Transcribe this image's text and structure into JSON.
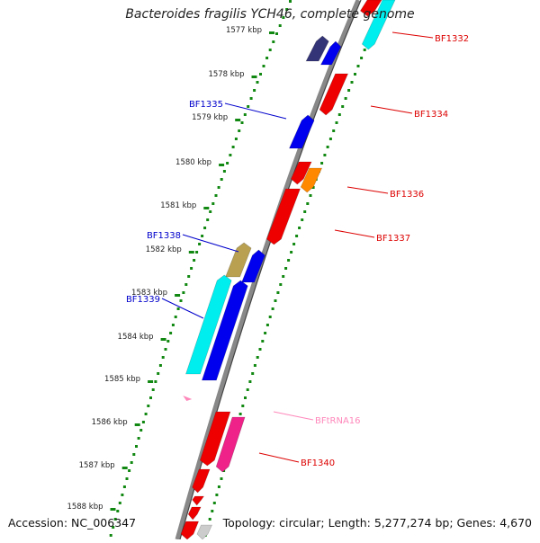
{
  "title": "Bacteroides fragilis YCH46, complete genome",
  "footer": {
    "accession": "Accession: NC_006347",
    "summary": "Topology: circular; Length: 5,277,274 bp; Genes: 4,670"
  },
  "ticks": [
    "1577 kbp",
    "1578 kbp",
    "1579 kbp",
    "1580 kbp",
    "1581 kbp",
    "1582 kbp",
    "1583 kbp",
    "1584 kbp",
    "1585 kbp",
    "1586 kbp",
    "1587 kbp",
    "1588 kbp"
  ],
  "gene_labels": [
    {
      "text": "BF1332",
      "color": "#dd0000"
    },
    {
      "text": "BF1334",
      "color": "#dd0000"
    },
    {
      "text": "BF1335",
      "color": "#0000cc"
    },
    {
      "text": "BF1336",
      "color": "#dd0000"
    },
    {
      "text": "BF1337",
      "color": "#dd0000"
    },
    {
      "text": "BF1338",
      "color": "#0000cc"
    },
    {
      "text": "BF1339",
      "color": "#0000cc"
    },
    {
      "text": "BFtRNA16",
      "color": "#ff88bb"
    },
    {
      "text": "BF1340",
      "color": "#dd0000"
    }
  ],
  "colors": {
    "backbone": "#888888",
    "dots": "#118811",
    "forward_red": "#ee0000",
    "reverse_blue": "#0000ee",
    "cyan": "#00eeee",
    "orange": "#ff8800",
    "olive": "#b8a050",
    "pink": "#ee2288",
    "dark_purple": "#333377"
  }
}
